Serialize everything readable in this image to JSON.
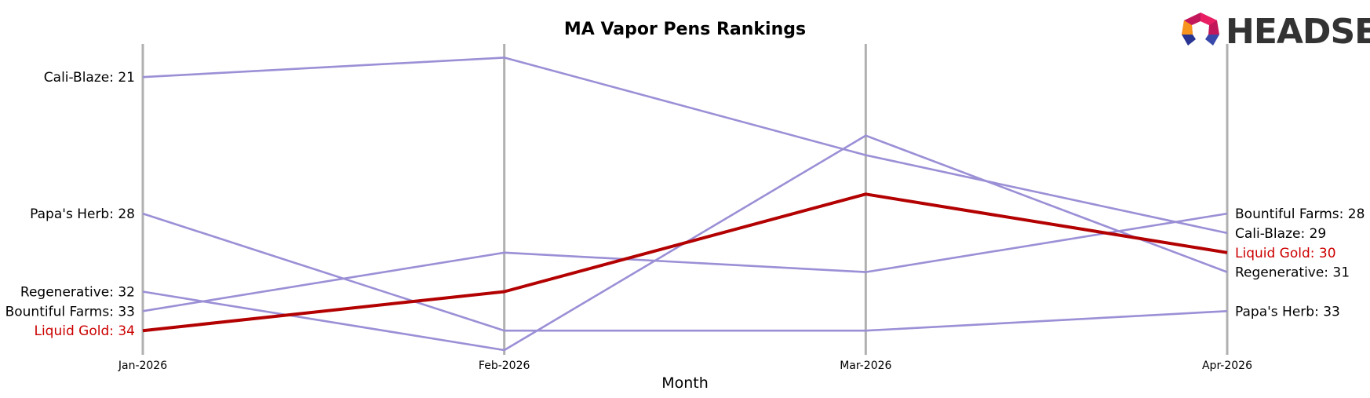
{
  "chart_data": {
    "type": "line",
    "title": "MA Vapor Pens Rankings",
    "xlabel": "Month",
    "ylabel": "",
    "categories": [
      "Jan-2026",
      "Feb-2026",
      "Mar-2026",
      "Apr-2026"
    ],
    "y_inverted": true,
    "ylim": [
      19.1,
      35.0
    ],
    "grid": "vertical lines at each month",
    "legend": "none (series labels at line ends)",
    "series": [
      {
        "name": "Cali-Blaze",
        "values": [
          21,
          20,
          25,
          29
        ],
        "color": "#9b8fd6",
        "highlight": false
      },
      {
        "name": "Papa's Herb",
        "values": [
          28,
          34,
          34,
          33
        ],
        "color": "#9b8fd6",
        "highlight": false
      },
      {
        "name": "Regenerative",
        "values": [
          32,
          35,
          24,
          31
        ],
        "color": "#9b8fd6",
        "highlight": false
      },
      {
        "name": "Bountiful Farms",
        "values": [
          33,
          30,
          31,
          28
        ],
        "color": "#9b8fd6",
        "highlight": false
      },
      {
        "name": "Liquid Gold",
        "values": [
          34,
          32,
          27,
          30
        ],
        "color": "#b30000",
        "highlight": true
      }
    ],
    "start_labels": [
      {
        "text": "Cali-Blaze: 21",
        "series": "Cali-Blaze"
      },
      {
        "text": "Papa's Herb: 28",
        "series": "Papa's Herb"
      },
      {
        "text": "Regenerative: 32",
        "series": "Regenerative"
      },
      {
        "text": "Bountiful Farms: 33",
        "series": "Bountiful Farms"
      },
      {
        "text": "Liquid Gold: 34",
        "series": "Liquid Gold"
      }
    ],
    "end_labels": [
      {
        "text": "Bountiful Farms: 28",
        "series": "Bountiful Farms"
      },
      {
        "text": "Cali-Blaze: 29",
        "series": "Cali-Blaze"
      },
      {
        "text": "Liquid Gold: 30",
        "series": "Liquid Gold"
      },
      {
        "text": "Regenerative: 31",
        "series": "Regenerative"
      },
      {
        "text": "Papa's Herb: 33",
        "series": "Papa's Herb"
      }
    ]
  },
  "logo": {
    "text": "HEADSET"
  },
  "colors": {
    "muted_line": "#9b8fd6",
    "highlight_line": "#b30000",
    "gridline": "#b0b0b0",
    "highlight_label": "#cc0000",
    "normal_label": "#000000"
  }
}
